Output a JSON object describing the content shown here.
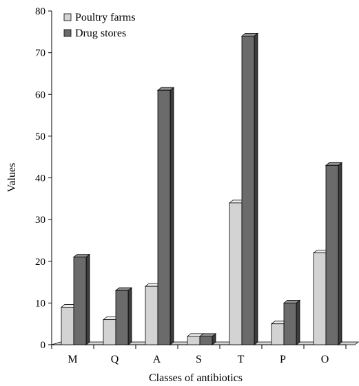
{
  "chart_data": {
    "type": "bar",
    "title": "",
    "xlabel": "Classes of antibiotics",
    "ylabel": "Values",
    "categories": [
      "M",
      "Q",
      "A",
      "S",
      "T",
      "P",
      "O"
    ],
    "series": [
      {
        "name": "Poultry farms",
        "values": [
          9,
          6,
          14,
          2,
          34,
          5,
          22
        ]
      },
      {
        "name": "Drug stores",
        "values": [
          21,
          13,
          61,
          2,
          74,
          10,
          43
        ]
      }
    ],
    "ylim": [
      0,
      80
    ],
    "yticks": [
      0,
      10,
      20,
      30,
      40,
      50,
      60,
      70,
      80
    ],
    "style": "3d",
    "legend_position": "top-left",
    "grid": false,
    "colors": {
      "Poultry farms": "#d3d3d3",
      "Drug stores": "#6b6b6b"
    }
  }
}
